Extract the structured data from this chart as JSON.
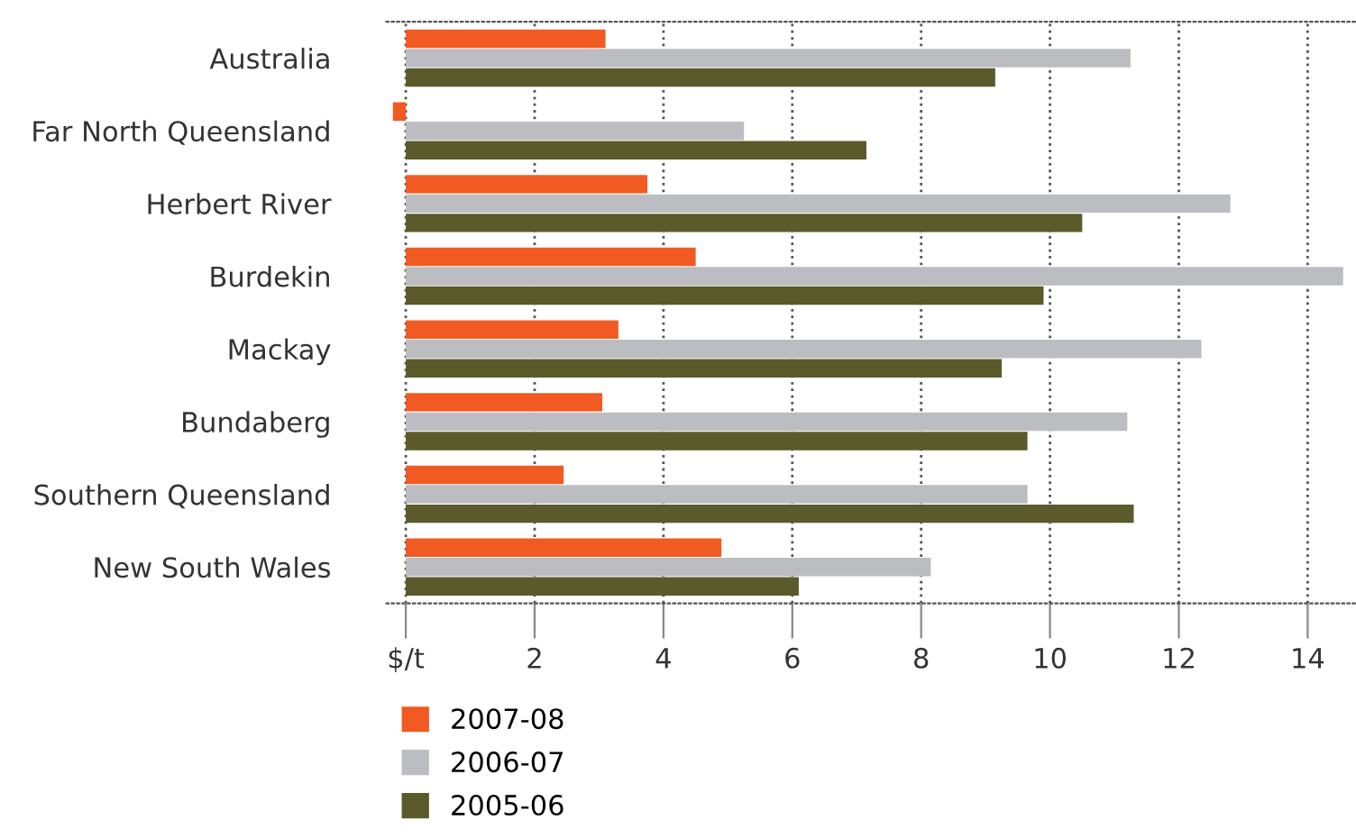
{
  "chart_data": {
    "type": "bar",
    "orientation": "horizontal",
    "categories": [
      "Australia",
      "Far North Queensland",
      "Herbert River",
      "Burdekin",
      "Mackay",
      "Bundaberg",
      "Southern Queensland",
      "New South Wales"
    ],
    "series": [
      {
        "name": "2007-08",
        "color": "#f15a22",
        "values": [
          3.1,
          -0.2,
          3.75,
          4.5,
          3.3,
          3.05,
          2.45,
          4.9
        ]
      },
      {
        "name": "2006-07",
        "color": "#bcbdc0",
        "values": [
          11.25,
          5.25,
          12.8,
          14.55,
          12.35,
          11.2,
          9.65,
          8.15
        ]
      },
      {
        "name": "2005-06",
        "color": "#5a5a2a",
        "values": [
          9.15,
          7.15,
          10.5,
          9.9,
          9.25,
          9.65,
          11.3,
          6.1
        ]
      }
    ],
    "xlim": [
      -0.3,
      14.75
    ],
    "xticks": [
      {
        "value": 0,
        "label": "$/t"
      },
      2,
      4,
      6,
      8,
      10,
      12,
      14
    ],
    "grid": "x",
    "legend": "bottom"
  }
}
